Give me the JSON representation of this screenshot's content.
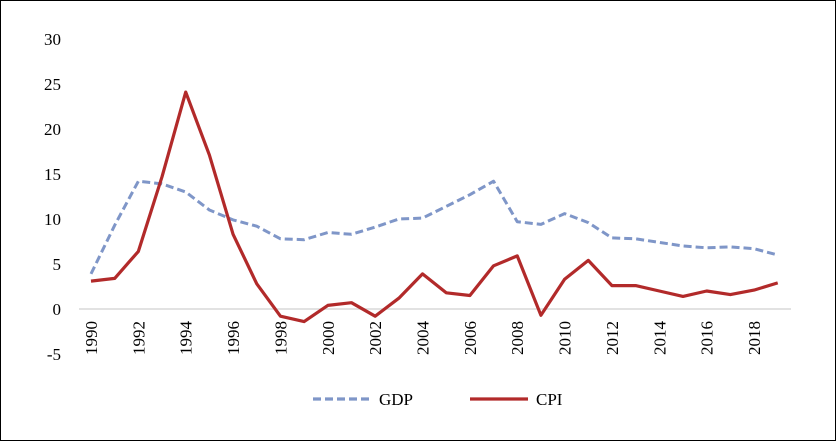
{
  "chart_data": {
    "type": "line",
    "x": [
      1990,
      1991,
      1992,
      1993,
      1994,
      1995,
      1996,
      1997,
      1998,
      1999,
      2000,
      2001,
      2002,
      2003,
      2004,
      2005,
      2006,
      2007,
      2008,
      2009,
      2010,
      2011,
      2012,
      2013,
      2014,
      2015,
      2016,
      2017,
      2018,
      2019
    ],
    "x_tick_labels": [
      "1990",
      "1992",
      "1994",
      "1996",
      "1998",
      "2000",
      "2002",
      "2004",
      "2006",
      "2008",
      "2010",
      "2012",
      "2014",
      "2016",
      "2018"
    ],
    "y_tick_labels": [
      "30",
      "25",
      "20",
      "15",
      "10",
      "5",
      "0",
      "-5"
    ],
    "ylim": [
      -5,
      30
    ],
    "grid": false,
    "legend": "bottom",
    "series": [
      {
        "name": "GDP",
        "color": "#7f96c8",
        "style": "dashed",
        "values": [
          3.9,
          9.3,
          14.2,
          13.9,
          13.0,
          11.0,
          9.9,
          9.2,
          7.8,
          7.7,
          8.5,
          8.3,
          9.1,
          10.0,
          10.1,
          11.4,
          12.7,
          14.2,
          9.7,
          9.4,
          10.6,
          9.6,
          7.9,
          7.8,
          7.4,
          7.0,
          6.8,
          6.9,
          6.7,
          6.0
        ]
      },
      {
        "name": "CPI",
        "color": "#b22a2a",
        "style": "solid",
        "values": [
          3.1,
          3.4,
          6.4,
          14.7,
          24.1,
          17.1,
          8.3,
          2.8,
          -0.8,
          -1.4,
          0.4,
          0.7,
          -0.8,
          1.2,
          3.9,
          1.8,
          1.5,
          4.8,
          5.9,
          -0.7,
          3.3,
          5.4,
          2.6,
          2.6,
          2.0,
          1.4,
          2.0,
          1.6,
          2.1,
          2.9
        ]
      }
    ]
  }
}
